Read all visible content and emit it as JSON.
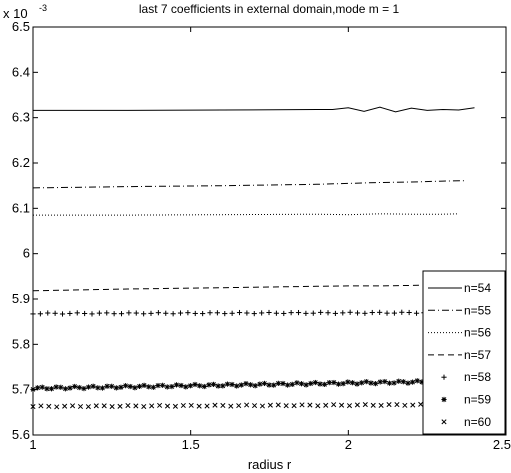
{
  "chart_data": {
    "type": "line",
    "title": "last 7 coefficients in external domain,mode m = 1",
    "xlabel": "radius r",
    "ylabel": "",
    "y_multiplier": {
      "base": "x 10",
      "exponent": "-3"
    },
    "xlim": [
      1,
      2.5
    ],
    "ylim": [
      5.6,
      6.5
    ],
    "x_ticks": [
      1,
      1.5,
      2,
      2.5
    ],
    "x_tick_labels": [
      "1",
      "1.5",
      "2",
      "2.5"
    ],
    "y_ticks": [
      5.6,
      5.7,
      5.8,
      5.9,
      6.0,
      6.1,
      6.2,
      6.3,
      6.4,
      6.5
    ],
    "y_tick_labels": [
      "5.6",
      "5.7",
      "5.8",
      "5.9",
      "6",
      "6.1",
      "6.2",
      "6.3",
      "6.4",
      "6.5"
    ],
    "grid": false,
    "legend_position": "bottom-right",
    "series": [
      {
        "name": "n=54",
        "style": "solid",
        "marker": "none",
        "x": [
          1.0,
          1.3,
          1.6,
          1.9,
          1.95,
          2.0,
          2.05,
          2.1,
          2.15,
          2.2,
          2.25,
          2.3,
          2.35,
          2.4
        ],
        "y": [
          6.316,
          6.316,
          6.317,
          6.318,
          6.318,
          6.322,
          6.314,
          6.323,
          6.313,
          6.321,
          6.316,
          6.318,
          6.317,
          6.322
        ]
      },
      {
        "name": "n=55",
        "style": "dashdot",
        "marker": "none",
        "x": [
          1.0,
          1.3,
          1.6,
          1.9,
          2.0,
          2.1,
          2.2,
          2.3,
          2.37
        ],
        "y": [
          6.145,
          6.148,
          6.15,
          6.153,
          6.155,
          6.157,
          6.158,
          6.16,
          6.161
        ]
      },
      {
        "name": "n=56",
        "style": "dotted",
        "marker": "none",
        "x": [
          1.0,
          1.3,
          1.6,
          1.9,
          2.0,
          2.1,
          2.2,
          2.3,
          2.35
        ],
        "y": [
          6.085,
          6.085,
          6.086,
          6.087,
          6.086,
          6.088,
          6.087,
          6.087,
          6.088
        ]
      },
      {
        "name": "n=57",
        "style": "dashed",
        "marker": "none",
        "x": [
          1.0,
          1.3,
          1.6,
          1.9,
          2.0,
          2.1,
          2.2,
          2.3,
          2.35
        ],
        "y": [
          5.918,
          5.922,
          5.925,
          5.928,
          5.929,
          5.929,
          5.93,
          5.931,
          5.931
        ]
      },
      {
        "name": "n=58",
        "style": "none",
        "marker": "plus",
        "x_range": [
          1.0,
          2.38
        ],
        "count": 60,
        "y_start": 5.868,
        "y_end": 5.87
      },
      {
        "name": "n=59",
        "style": "none",
        "marker": "star",
        "x_range": [
          1.0,
          2.38
        ],
        "count": 95,
        "y_start": 5.703,
        "y_end": 5.719
      },
      {
        "name": "n=60",
        "style": "none",
        "marker": "x",
        "x_range": [
          1.0,
          2.38
        ],
        "count": 56,
        "y_start": 5.663,
        "y_end": 5.667
      }
    ]
  }
}
